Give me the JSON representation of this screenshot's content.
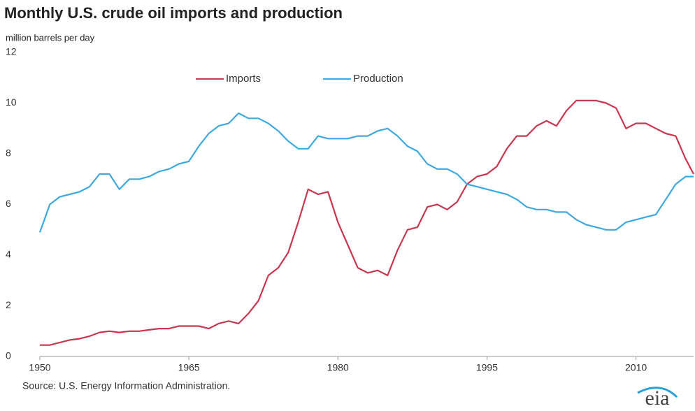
{
  "chart_data": {
    "type": "line",
    "title": "Monthly U.S. crude oil imports and production",
    "y_label": "million barrels per day",
    "source": "Source:  U.S. Energy Information Administration.",
    "logo": "eia",
    "x": [
      1950,
      1951,
      1952,
      1953,
      1954,
      1955,
      1956,
      1957,
      1958,
      1959,
      1960,
      1961,
      1962,
      1963,
      1964,
      1965,
      1966,
      1967,
      1968,
      1969,
      1970,
      1971,
      1972,
      1973,
      1974,
      1975,
      1976,
      1977,
      1978,
      1979,
      1980,
      1981,
      1982,
      1983,
      1984,
      1985,
      1986,
      1987,
      1988,
      1989,
      1990,
      1991,
      1992,
      1993,
      1994,
      1995,
      1996,
      1997,
      1998,
      1999,
      2000,
      2001,
      2002,
      2003,
      2004,
      2005,
      2006,
      2007,
      2008,
      2009,
      2010,
      2011,
      2012,
      2013,
      2014,
      2015,
      2015.8
    ],
    "series": [
      {
        "name": "Imports",
        "color": "#c8374f",
        "values": [
          0.45,
          0.45,
          0.55,
          0.65,
          0.7,
          0.8,
          0.95,
          1.0,
          0.95,
          1.0,
          1.0,
          1.05,
          1.1,
          1.1,
          1.2,
          1.2,
          1.2,
          1.1,
          1.3,
          1.4,
          1.3,
          1.7,
          2.2,
          3.2,
          3.5,
          4.1,
          5.3,
          6.6,
          6.4,
          6.5,
          5.3,
          4.4,
          3.5,
          3.3,
          3.4,
          3.2,
          4.2,
          5.0,
          5.1,
          5.9,
          6.0,
          5.8,
          6.1,
          6.8,
          7.1,
          7.2,
          7.5,
          8.2,
          8.7,
          8.7,
          9.1,
          9.3,
          9.1,
          9.7,
          10.1,
          10.1,
          10.1,
          10.0,
          9.8,
          9.0,
          9.2,
          9.2,
          9.0,
          8.8,
          8.7,
          7.8,
          7.2
        ]
      },
      {
        "name": "Production",
        "color": "#3ea8e0",
        "values": [
          4.9,
          6.0,
          6.3,
          6.4,
          6.5,
          6.7,
          7.2,
          7.2,
          6.6,
          7.0,
          7.0,
          7.1,
          7.3,
          7.4,
          7.6,
          7.7,
          8.3,
          8.8,
          9.1,
          9.2,
          9.6,
          9.4,
          9.4,
          9.2,
          8.9,
          8.5,
          8.2,
          8.2,
          8.7,
          8.6,
          8.6,
          8.6,
          8.7,
          8.7,
          8.9,
          9.0,
          8.7,
          8.3,
          8.1,
          7.6,
          7.4,
          7.4,
          7.2,
          6.8,
          6.7,
          6.6,
          6.5,
          6.4,
          6.2,
          5.9,
          5.8,
          5.8,
          5.7,
          5.7,
          5.4,
          5.2,
          5.1,
          5.0,
          5.0,
          5.3,
          5.4,
          5.5,
          5.6,
          6.2,
          6.8,
          7.1,
          7.1
        ]
      }
    ],
    "xlim": [
      1950,
      2015.8
    ],
    "xticks": [
      1950,
      1965,
      1980,
      1995,
      2010
    ],
    "ylim": [
      0,
      12
    ],
    "yticks": [
      0,
      2,
      4,
      6,
      8,
      10,
      12
    ],
    "grid": false,
    "legend": "top"
  }
}
